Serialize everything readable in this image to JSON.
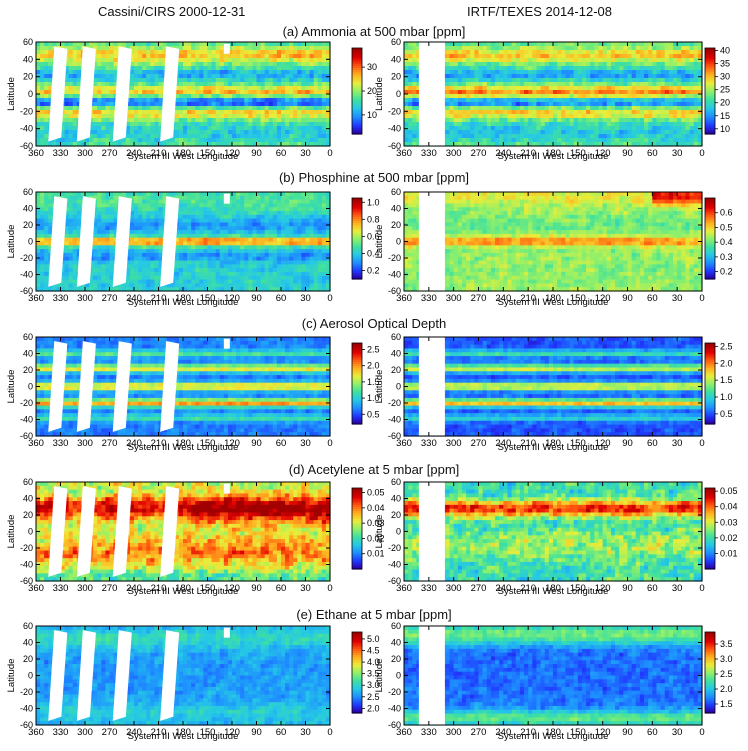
{
  "figure": {
    "left_title": "Cassini/CIRS 2000-12-31",
    "right_title": "IRTF/TEXES 2014-12-08"
  },
  "colormap": [
    "#2b00a8",
    "#1f3cff",
    "#1e90ff",
    "#25c8e6",
    "#3fe0a0",
    "#8ef06a",
    "#e8ee3a",
    "#ffb020",
    "#ff5a10",
    "#e00000",
    "#a00000"
  ],
  "axes": {
    "xlabel": "System III West Longitude",
    "ylabel": "Latitude",
    "xticks": [
      360,
      330,
      300,
      270,
      240,
      210,
      180,
      150,
      120,
      90,
      60,
      30,
      0
    ],
    "yticks": [
      60,
      40,
      20,
      0,
      -20,
      -40,
      -60
    ]
  },
  "chart_data": [
    {
      "type": "heatmap",
      "title": "(a) Ammonia at 500 mbar [ppm]",
      "panels": [
        {
          "id": "cassini",
          "xlabel": "System III West Longitude",
          "ylabel": "Latitude",
          "xlim": [
            360,
            0
          ],
          "ylim": [
            -60,
            60
          ],
          "colorbar": {
            "ticks": [
              10,
              20,
              30
            ],
            "range": [
              2,
              38
            ]
          }
        },
        {
          "id": "texes",
          "xlabel": "System III West Longitude",
          "ylabel": "Latitude",
          "xlim": [
            360,
            0
          ],
          "ylim": [
            -60,
            60
          ],
          "colorbar": {
            "ticks": [
              10,
              15,
              20,
              25,
              30,
              35,
              40
            ],
            "range": [
              8,
              41
            ]
          }
        }
      ]
    },
    {
      "type": "heatmap",
      "title": "(b) Phosphine at 500 mbar [ppm]",
      "panels": [
        {
          "id": "cassini",
          "xlabel": "System III West Longitude",
          "ylabel": "Latitude",
          "xlim": [
            360,
            0
          ],
          "ylim": [
            -60,
            60
          ],
          "colorbar": {
            "ticks": [
              0.2,
              0.4,
              0.6,
              0.8,
              1.0
            ],
            "range": [
              0.1,
              1.05
            ]
          }
        },
        {
          "id": "texes",
          "xlabel": "System III West Longitude",
          "ylabel": "Latitude",
          "xlim": [
            360,
            0
          ],
          "ylim": [
            -60,
            60
          ],
          "colorbar": {
            "ticks": [
              0.2,
              0.3,
              0.4,
              0.5,
              0.6
            ],
            "range": [
              0.15,
              0.7
            ]
          }
        }
      ]
    },
    {
      "type": "heatmap",
      "title": "(c) Aerosol Optical Depth",
      "panels": [
        {
          "id": "cassini",
          "xlabel": "System III West Longitude",
          "ylabel": "Latitude",
          "xlim": [
            360,
            0
          ],
          "ylim": [
            -60,
            60
          ],
          "colorbar": {
            "ticks": [
              0.5,
              1.0,
              1.5,
              2.0,
              2.5
            ],
            "range": [
              0.2,
              2.7
            ]
          }
        },
        {
          "id": "texes",
          "xlabel": "System III West Longitude",
          "ylabel": "Latitude",
          "xlim": [
            360,
            0
          ],
          "ylim": [
            -60,
            60
          ],
          "colorbar": {
            "ticks": [
              0.5,
              1.0,
              1.5,
              2.0,
              2.5
            ],
            "range": [
              0.2,
              2.6
            ]
          }
        }
      ]
    },
    {
      "type": "heatmap",
      "title": "(d) Acetylene at 5 mbar [ppm]",
      "panels": [
        {
          "id": "cassini",
          "xlabel": "System III West Longitude",
          "ylabel": "Latitude",
          "xlim": [
            360,
            0
          ],
          "ylim": [
            -60,
            60
          ],
          "colorbar": {
            "ticks": [
              0.01,
              0.02,
              0.03,
              0.04,
              0.05
            ],
            "range": [
              0.0,
              0.053
            ]
          }
        },
        {
          "id": "texes",
          "xlabel": "System III West Longitude",
          "ylabel": "Latitude",
          "xlim": [
            360,
            0
          ],
          "ylim": [
            -60,
            60
          ],
          "colorbar": {
            "ticks": [
              0.01,
              0.02,
              0.03,
              0.04,
              0.05
            ],
            "range": [
              0.0,
              0.052
            ]
          }
        }
      ]
    },
    {
      "type": "heatmap",
      "title": "(e) Ethane at 5 mbar [ppm]",
      "panels": [
        {
          "id": "cassini",
          "xlabel": "System III West Longitude",
          "ylabel": "Latitude",
          "xlim": [
            360,
            0
          ],
          "ylim": [
            -60,
            60
          ],
          "colorbar": {
            "ticks": [
              2.0,
              2.5,
              3.0,
              3.5,
              4.0,
              4.5,
              5.0
            ],
            "range": [
              1.8,
              5.3
            ]
          }
        },
        {
          "id": "texes",
          "xlabel": "System III West Longitude",
          "ylabel": "Latitude",
          "xlim": [
            360,
            0
          ],
          "ylim": [
            -60,
            60
          ],
          "colorbar": {
            "ticks": [
              1.5,
              2.0,
              2.5,
              3.0,
              3.5
            ],
            "range": [
              1.2,
              3.9
            ]
          }
        }
      ]
    }
  ]
}
